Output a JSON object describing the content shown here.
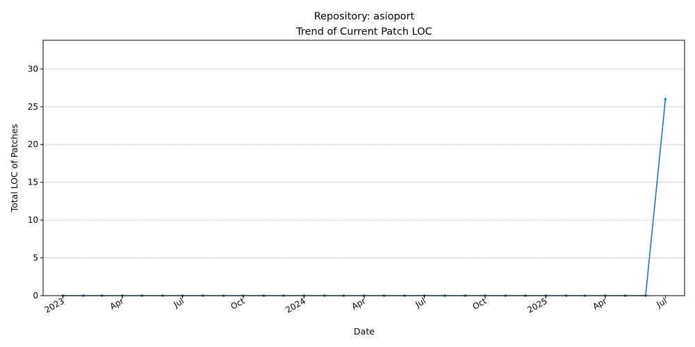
{
  "chart_data": {
    "type": "line",
    "title": "Repository: asioport",
    "subtitle": "Trend of Current Patch LOC",
    "xlabel": "Date",
    "ylabel": "Total LOC of Patches",
    "ylim": [
      0,
      33.8
    ],
    "xlim": [
      "2022-12-02",
      "2025-07-30"
    ],
    "yticks": [
      0,
      5,
      10,
      15,
      20,
      25,
      30
    ],
    "xticks": [
      {
        "date": "2023-01-01",
        "label": "2023"
      },
      {
        "date": "2023-04-01",
        "label": "Apr"
      },
      {
        "date": "2023-07-01",
        "label": "Jul"
      },
      {
        "date": "2023-10-01",
        "label": "Oct"
      },
      {
        "date": "2024-01-01",
        "label": "2024"
      },
      {
        "date": "2024-04-01",
        "label": "Apr"
      },
      {
        "date": "2024-07-01",
        "label": "Jul"
      },
      {
        "date": "2024-10-01",
        "label": "Oct"
      },
      {
        "date": "2025-01-01",
        "label": "2025"
      },
      {
        "date": "2025-04-01",
        "label": "Apr"
      },
      {
        "date": "2025-07-01",
        "label": "Jul"
      }
    ],
    "grid": {
      "y": true,
      "x": false
    },
    "line_color": "#1f77b4",
    "series": [
      {
        "x": [
          "2023-01-01",
          "2023-02-01",
          "2023-03-01",
          "2023-04-01",
          "2023-05-01",
          "2023-06-01",
          "2023-07-01",
          "2023-08-01",
          "2023-09-01",
          "2023-10-01",
          "2023-11-01",
          "2023-12-01",
          "2024-01-01",
          "2024-02-01",
          "2024-03-01",
          "2024-04-01",
          "2024-05-01",
          "2024-06-01",
          "2024-07-01",
          "2024-08-01",
          "2024-09-01",
          "2024-10-01",
          "2024-11-01",
          "2024-12-01",
          "2025-01-01",
          "2025-02-01",
          "2025-03-01",
          "2025-04-01",
          "2025-05-01",
          "2025-06-01",
          "2025-07-01"
        ],
        "values": [
          0,
          0,
          0,
          0,
          0,
          0,
          0,
          0,
          0,
          0,
          0,
          0,
          0,
          0,
          0,
          0,
          0,
          0,
          0,
          0,
          0,
          0,
          0,
          0,
          0,
          0,
          0,
          0,
          0,
          0,
          26
        ]
      }
    ]
  }
}
